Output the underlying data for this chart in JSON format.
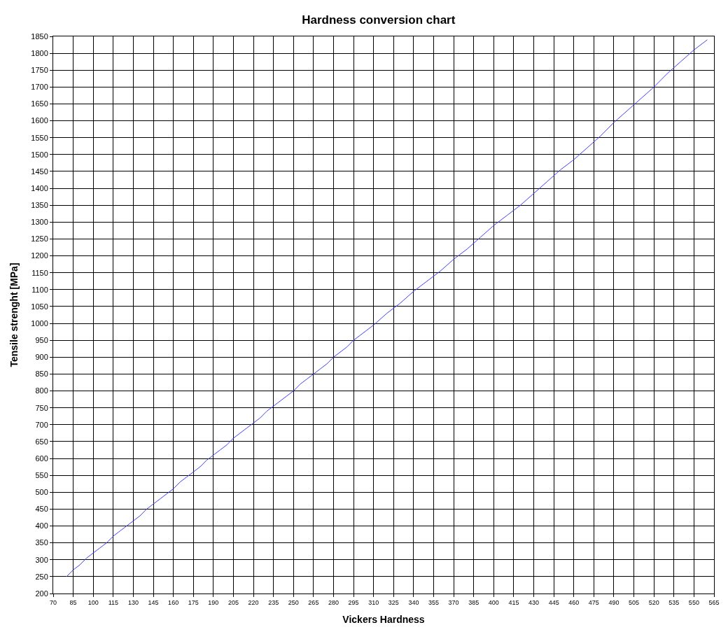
{
  "chart_data": {
    "type": "line",
    "title": "Hardness conversion chart",
    "xlabel": "Vickers Hardness",
    "ylabel": "Tensile strenght [MPa]",
    "x": [
      80,
      85,
      90,
      95,
      100,
      105,
      110,
      115,
      120,
      125,
      130,
      135,
      140,
      145,
      150,
      155,
      160,
      165,
      170,
      175,
      180,
      185,
      190,
      195,
      200,
      205,
      210,
      215,
      220,
      225,
      230,
      235,
      240,
      245,
      250,
      255,
      260,
      265,
      270,
      275,
      280,
      285,
      290,
      295,
      300,
      310,
      320,
      330,
      340,
      350,
      360,
      370,
      380,
      390,
      400,
      410,
      420,
      430,
      440,
      450,
      460,
      470,
      480,
      490,
      500,
      510,
      520,
      530,
      540,
      550,
      560
    ],
    "series": [
      {
        "color": "#4040ff",
        "values": [
          250,
          270,
          285,
          305,
          320,
          335,
          350,
          370,
          385,
          400,
          415,
          430,
          450,
          465,
          480,
          495,
          510,
          530,
          545,
          560,
          575,
          595,
          610,
          625,
          640,
          660,
          675,
          690,
          705,
          720,
          740,
          755,
          770,
          785,
          800,
          820,
          835,
          850,
          865,
          880,
          900,
          915,
          930,
          950,
          965,
          995,
          1030,
          1060,
          1095,
          1125,
          1155,
          1190,
          1220,
          1255,
          1290,
          1320,
          1350,
          1385,
          1420,
          1455,
          1485,
          1520,
          1555,
          1595,
          1630,
          1665,
          1700,
          1740,
          1775,
          1810,
          1840
        ]
      }
    ],
    "xlim": [
      70,
      565
    ],
    "xticks": [
      70,
      85,
      100,
      115,
      130,
      145,
      160,
      175,
      190,
      205,
      220,
      235,
      250,
      265,
      280,
      295,
      310,
      325,
      340,
      355,
      370,
      385,
      400,
      415,
      430,
      445,
      460,
      475,
      490,
      505,
      520,
      535,
      550,
      565
    ],
    "ylim": [
      200,
      1850
    ],
    "yticks": [
      200,
      250,
      300,
      350,
      400,
      450,
      500,
      550,
      600,
      650,
      700,
      750,
      800,
      850,
      900,
      950,
      1000,
      1050,
      1100,
      1150,
      1200,
      1250,
      1300,
      1350,
      1400,
      1450,
      1500,
      1550,
      1600,
      1650,
      1700,
      1750,
      1800,
      1850
    ],
    "grid": true,
    "marker": "none",
    "line_style": "solid"
  }
}
